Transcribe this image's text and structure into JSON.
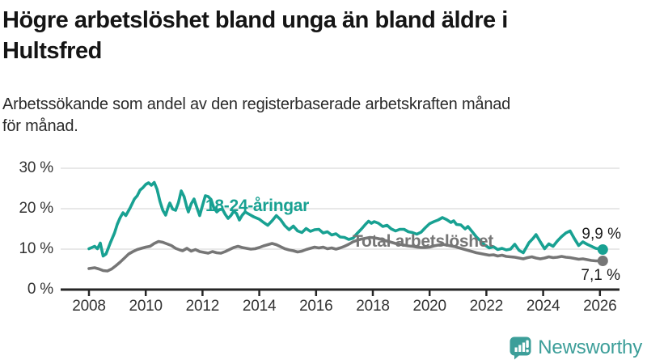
{
  "title_lines": [
    "Högre arbetslöshet bland unga än bland äldre i",
    "Hultsfred"
  ],
  "subtitle_lines": [
    "Arbetssökande som andel av den registerbaserade arbetskraften månad",
    "för månad."
  ],
  "colors": {
    "title": "#151515",
    "subtitle": "#2b2b2b",
    "axis": "#262626",
    "grid": "#d9d9d9",
    "tick_text": "#333333",
    "accent_teal": "#18a192",
    "accent_gray": "#767676",
    "logo_teal": "#3c9e99"
  },
  "branding": {
    "logo_text": "Newsworthy",
    "logo_icon": "speech-bubble-bar-chart-exclamation",
    "logo_color": "#3c9e99"
  },
  "chart_data": {
    "type": "line",
    "title": "Högre arbetslöshet bland unga än bland äldre i Hultsfred",
    "subtitle": "Arbetssökande som andel av den registerbaserade arbetskraften månad för månad.",
    "xlabel": "",
    "ylabel": "",
    "grid": true,
    "xlim": [
      2008.0,
      2026.1
    ],
    "ylim": [
      0,
      30
    ],
    "x_ticks": [
      2008,
      2010,
      2012,
      2014,
      2016,
      2018,
      2020,
      2022,
      2024,
      2026
    ],
    "y_ticks": [
      0,
      10,
      20,
      30
    ],
    "y_tick_suffix": " %",
    "legend_position": "inline-labels",
    "series": [
      {
        "name": "18-24-åringar",
        "color": "#18a192",
        "end_label": "9,9 %",
        "end_value": 9.9,
        "points": [
          [
            2008.0,
            10.1
          ],
          [
            2008.2,
            10.7
          ],
          [
            2008.3,
            10.1
          ],
          [
            2008.4,
            11.5
          ],
          [
            2008.5,
            8.3
          ],
          [
            2008.6,
            8.8
          ],
          [
            2008.75,
            11.5
          ],
          [
            2008.9,
            14.0
          ],
          [
            2009.0,
            16.2
          ],
          [
            2009.1,
            17.8
          ],
          [
            2009.2,
            19.0
          ],
          [
            2009.3,
            18.3
          ],
          [
            2009.45,
            20.2
          ],
          [
            2009.6,
            22.4
          ],
          [
            2009.7,
            23.2
          ],
          [
            2009.8,
            24.6
          ],
          [
            2009.9,
            25.2
          ],
          [
            2010.0,
            26.0
          ],
          [
            2010.1,
            26.4
          ],
          [
            2010.2,
            25.8
          ],
          [
            2010.3,
            26.5
          ],
          [
            2010.4,
            24.8
          ],
          [
            2010.5,
            21.8
          ],
          [
            2010.6,
            19.6
          ],
          [
            2010.7,
            18.4
          ],
          [
            2010.8,
            20.6
          ],
          [
            2010.85,
            21.4
          ],
          [
            2010.95,
            19.9
          ],
          [
            2011.05,
            19.6
          ],
          [
            2011.15,
            21.5
          ],
          [
            2011.25,
            24.4
          ],
          [
            2011.35,
            23.0
          ],
          [
            2011.45,
            20.3
          ],
          [
            2011.5,
            19.2
          ],
          [
            2011.6,
            21.2
          ],
          [
            2011.7,
            22.4
          ],
          [
            2011.8,
            20.3
          ],
          [
            2011.9,
            18.3
          ],
          [
            2012.0,
            20.8
          ],
          [
            2012.1,
            23.2
          ],
          [
            2012.2,
            23.0
          ],
          [
            2012.3,
            22.3
          ],
          [
            2012.4,
            20.2
          ],
          [
            2012.5,
            19.2
          ],
          [
            2012.6,
            19.8
          ],
          [
            2012.7,
            19.9
          ],
          [
            2012.8,
            18.6
          ],
          [
            2012.9,
            17.6
          ],
          [
            2013.0,
            18.3
          ],
          [
            2013.1,
            19.4
          ],
          [
            2013.2,
            18.8
          ],
          [
            2013.3,
            17.2
          ],
          [
            2013.4,
            18.4
          ],
          [
            2013.5,
            19.2
          ],
          [
            2013.65,
            18.6
          ],
          [
            2013.8,
            18.0
          ],
          [
            2014.0,
            17.4
          ],
          [
            2014.15,
            16.6
          ],
          [
            2014.3,
            15.9
          ],
          [
            2014.45,
            17.0
          ],
          [
            2014.6,
            18.3
          ],
          [
            2014.75,
            17.3
          ],
          [
            2014.9,
            15.8
          ],
          [
            2015.05,
            14.8
          ],
          [
            2015.2,
            15.7
          ],
          [
            2015.35,
            14.5
          ],
          [
            2015.5,
            14.1
          ],
          [
            2015.65,
            15.1
          ],
          [
            2015.8,
            14.4
          ],
          [
            2015.95,
            14.8
          ],
          [
            2016.1,
            14.9
          ],
          [
            2016.25,
            14.0
          ],
          [
            2016.4,
            14.3
          ],
          [
            2016.55,
            13.5
          ],
          [
            2016.7,
            13.8
          ],
          [
            2016.85,
            13.0
          ],
          [
            2017.0,
            12.9
          ],
          [
            2017.15,
            12.4
          ],
          [
            2017.3,
            12.7
          ],
          [
            2017.45,
            13.9
          ],
          [
            2017.6,
            15.0
          ],
          [
            2017.75,
            16.2
          ],
          [
            2017.85,
            16.9
          ],
          [
            2017.95,
            16.4
          ],
          [
            2018.05,
            16.8
          ],
          [
            2018.2,
            16.4
          ],
          [
            2018.35,
            15.6
          ],
          [
            2018.5,
            15.9
          ],
          [
            2018.65,
            15.0
          ],
          [
            2018.8,
            14.5
          ],
          [
            2018.95,
            14.9
          ],
          [
            2019.1,
            14.9
          ],
          [
            2019.25,
            14.3
          ],
          [
            2019.4,
            14.1
          ],
          [
            2019.55,
            13.7
          ],
          [
            2019.7,
            14.2
          ],
          [
            2019.85,
            15.3
          ],
          [
            2020.0,
            16.3
          ],
          [
            2020.15,
            16.8
          ],
          [
            2020.3,
            17.2
          ],
          [
            2020.45,
            17.8
          ],
          [
            2020.6,
            17.3
          ],
          [
            2020.75,
            16.6
          ],
          [
            2020.85,
            17.0
          ],
          [
            2020.95,
            16.1
          ],
          [
            2021.1,
            16.0
          ],
          [
            2021.25,
            15.0
          ],
          [
            2021.35,
            15.6
          ],
          [
            2021.5,
            14.3
          ],
          [
            2021.65,
            13.0
          ],
          [
            2021.8,
            12.0
          ],
          [
            2021.95,
            11.0
          ],
          [
            2022.1,
            10.3
          ],
          [
            2022.25,
            10.6
          ],
          [
            2022.4,
            9.9
          ],
          [
            2022.55,
            10.2
          ],
          [
            2022.7,
            9.8
          ],
          [
            2022.85,
            10.0
          ],
          [
            2023.0,
            11.2
          ],
          [
            2023.15,
            9.7
          ],
          [
            2023.3,
            9.1
          ],
          [
            2023.5,
            11.6
          ],
          [
            2023.65,
            12.7
          ],
          [
            2023.75,
            13.6
          ],
          [
            2023.9,
            11.8
          ],
          [
            2024.05,
            10.1
          ],
          [
            2024.2,
            11.3
          ],
          [
            2024.35,
            10.7
          ],
          [
            2024.5,
            12.0
          ],
          [
            2024.65,
            13.1
          ],
          [
            2024.8,
            14.0
          ],
          [
            2024.95,
            14.5
          ],
          [
            2025.1,
            12.6
          ],
          [
            2025.25,
            10.9
          ],
          [
            2025.4,
            11.8
          ],
          [
            2025.55,
            11.2
          ],
          [
            2025.7,
            10.7
          ],
          [
            2025.85,
            10.2
          ],
          [
            2026.0,
            10.0
          ],
          [
            2026.1,
            9.9
          ]
        ]
      },
      {
        "name": "Total arbetslöshet",
        "color": "#767676",
        "end_label": "7,1 %",
        "end_value": 7.1,
        "points": [
          [
            2008.0,
            5.2
          ],
          [
            2008.2,
            5.4
          ],
          [
            2008.35,
            5.1
          ],
          [
            2008.5,
            4.7
          ],
          [
            2008.65,
            4.6
          ],
          [
            2008.8,
            5.1
          ],
          [
            2008.95,
            5.9
          ],
          [
            2009.1,
            6.8
          ],
          [
            2009.25,
            7.8
          ],
          [
            2009.4,
            8.8
          ],
          [
            2009.55,
            9.4
          ],
          [
            2009.7,
            9.9
          ],
          [
            2009.85,
            10.2
          ],
          [
            2010.0,
            10.5
          ],
          [
            2010.15,
            10.7
          ],
          [
            2010.3,
            11.4
          ],
          [
            2010.45,
            11.9
          ],
          [
            2010.6,
            11.7
          ],
          [
            2010.75,
            11.3
          ],
          [
            2010.9,
            10.9
          ],
          [
            2011.05,
            10.2
          ],
          [
            2011.2,
            9.8
          ],
          [
            2011.3,
            9.6
          ],
          [
            2011.45,
            10.2
          ],
          [
            2011.6,
            9.5
          ],
          [
            2011.75,
            9.9
          ],
          [
            2011.9,
            9.4
          ],
          [
            2012.05,
            9.2
          ],
          [
            2012.2,
            9.0
          ],
          [
            2012.35,
            9.4
          ],
          [
            2012.5,
            9.1
          ],
          [
            2012.65,
            9.0
          ],
          [
            2012.8,
            9.4
          ],
          [
            2012.95,
            9.9
          ],
          [
            2013.1,
            10.4
          ],
          [
            2013.25,
            10.7
          ],
          [
            2013.4,
            10.4
          ],
          [
            2013.55,
            10.2
          ],
          [
            2013.7,
            10.0
          ],
          [
            2013.85,
            10.1
          ],
          [
            2014.0,
            10.4
          ],
          [
            2014.15,
            10.8
          ],
          [
            2014.3,
            11.1
          ],
          [
            2014.45,
            11.4
          ],
          [
            2014.6,
            11.1
          ],
          [
            2014.75,
            10.6
          ],
          [
            2014.9,
            10.1
          ],
          [
            2015.05,
            9.8
          ],
          [
            2015.2,
            9.6
          ],
          [
            2015.35,
            9.3
          ],
          [
            2015.5,
            9.5
          ],
          [
            2015.65,
            9.9
          ],
          [
            2015.8,
            10.2
          ],
          [
            2015.95,
            10.5
          ],
          [
            2016.1,
            10.3
          ],
          [
            2016.25,
            10.5
          ],
          [
            2016.4,
            10.1
          ],
          [
            2016.55,
            10.3
          ],
          [
            2016.7,
            10.0
          ],
          [
            2016.85,
            10.3
          ],
          [
            2017.0,
            10.7
          ],
          [
            2017.15,
            11.2
          ],
          [
            2017.3,
            11.8
          ],
          [
            2017.45,
            12.2
          ],
          [
            2017.6,
            12.5
          ],
          [
            2017.75,
            12.7
          ],
          [
            2017.9,
            12.9
          ],
          [
            2018.05,
            12.8
          ],
          [
            2018.2,
            12.6
          ],
          [
            2018.35,
            12.3
          ],
          [
            2018.5,
            12.0
          ],
          [
            2018.65,
            11.7
          ],
          [
            2018.8,
            11.4
          ],
          [
            2018.95,
            11.2
          ],
          [
            2019.1,
            11.0
          ],
          [
            2019.25,
            10.8
          ],
          [
            2019.4,
            10.7
          ],
          [
            2019.55,
            10.5
          ],
          [
            2019.7,
            10.4
          ],
          [
            2019.85,
            10.4
          ],
          [
            2020.0,
            10.5
          ],
          [
            2020.15,
            10.8
          ],
          [
            2020.3,
            11.0
          ],
          [
            2020.45,
            11.2
          ],
          [
            2020.6,
            11.0
          ],
          [
            2020.75,
            10.8
          ],
          [
            2020.9,
            10.6
          ],
          [
            2021.05,
            10.3
          ],
          [
            2021.2,
            10.0
          ],
          [
            2021.35,
            9.7
          ],
          [
            2021.5,
            9.4
          ],
          [
            2021.65,
            9.1
          ],
          [
            2021.8,
            8.9
          ],
          [
            2021.95,
            8.7
          ],
          [
            2022.1,
            8.5
          ],
          [
            2022.25,
            8.6
          ],
          [
            2022.4,
            8.3
          ],
          [
            2022.55,
            8.5
          ],
          [
            2022.7,
            8.2
          ],
          [
            2022.85,
            8.1
          ],
          [
            2023.0,
            8.0
          ],
          [
            2023.15,
            7.8
          ],
          [
            2023.3,
            7.6
          ],
          [
            2023.45,
            7.9
          ],
          [
            2023.6,
            8.1
          ],
          [
            2023.75,
            7.8
          ],
          [
            2023.9,
            7.6
          ],
          [
            2024.05,
            7.8
          ],
          [
            2024.2,
            8.1
          ],
          [
            2024.35,
            7.9
          ],
          [
            2024.5,
            8.0
          ],
          [
            2024.65,
            8.2
          ],
          [
            2024.8,
            8.0
          ],
          [
            2024.95,
            7.9
          ],
          [
            2025.1,
            7.7
          ],
          [
            2025.25,
            7.5
          ],
          [
            2025.4,
            7.6
          ],
          [
            2025.55,
            7.4
          ],
          [
            2025.7,
            7.2
          ],
          [
            2025.85,
            7.1
          ],
          [
            2026.1,
            7.1
          ]
        ]
      }
    ]
  }
}
